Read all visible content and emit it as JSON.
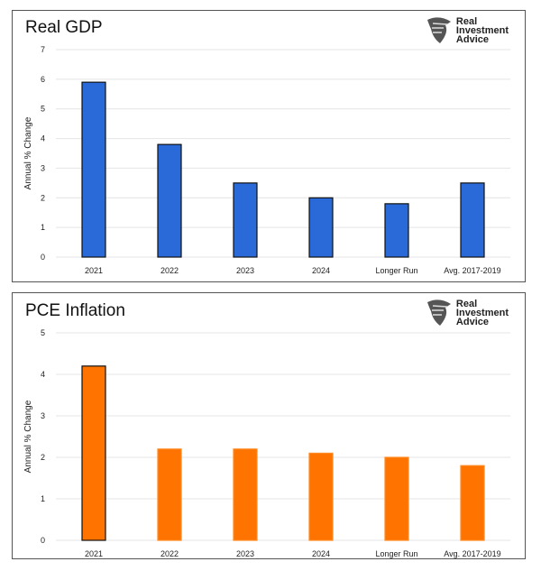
{
  "logo_text": [
    "Real",
    "Investment",
    "Advice"
  ],
  "chart_data": [
    {
      "type": "bar",
      "title": "Real GDP",
      "ylabel": "Annual % Change",
      "xlabel": "",
      "categories": [
        "2021",
        "2022",
        "2023",
        "2024",
        "Longer Run",
        "Avg. 2017-2019"
      ],
      "values": [
        5.9,
        3.8,
        2.5,
        2.0,
        1.8,
        2.5
      ],
      "ylim": [
        0,
        7
      ],
      "yticks": [
        0,
        1,
        2,
        3,
        4,
        5,
        6,
        7
      ],
      "grid": true,
      "color": "#2a6ad8",
      "edge": "#0a1a4a"
    },
    {
      "type": "bar",
      "title": "PCE Inflation",
      "ylabel": "Annual % Change",
      "xlabel": "",
      "categories": [
        "2021",
        "2022",
        "2023",
        "2024",
        "Longer Run",
        "Avg. 2017-2019"
      ],
      "values": [
        4.2,
        2.2,
        2.2,
        2.1,
        2.0,
        1.8
      ],
      "ylim": [
        0,
        5
      ],
      "yticks": [
        0,
        1,
        2,
        3,
        4,
        5
      ],
      "grid": true,
      "color": "#ff7300",
      "edge": "#ff8a20"
    }
  ]
}
